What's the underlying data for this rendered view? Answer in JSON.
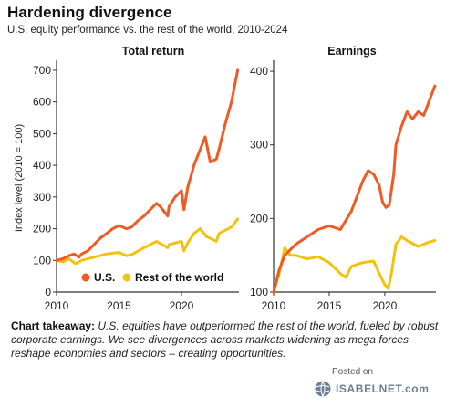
{
  "header": {
    "title": "Hardening divergence",
    "subtitle": "U.S. equity performance vs. the rest of the world, 2010-2024"
  },
  "takeaway": {
    "label": "Chart takeaway:",
    "text": "U.S. equities have outperformed the rest of the world, fueled by robust corporate earnings. We see divergences across markets widening as mega forces reshape economies and sectors – creating opportunities."
  },
  "watermark": {
    "posted": "Posted on",
    "brand": "ISABELNET.com"
  },
  "colors": {
    "us": "#f15a22",
    "row": "#f4c20d",
    "axis": "#333333"
  },
  "chart_data": [
    {
      "type": "line",
      "title": "Total return",
      "ylabel": "Index level (2010 = 100)",
      "xlim": [
        2010,
        2024.6
      ],
      "ylim": [
        0,
        720
      ],
      "yticks": [
        0,
        100,
        200,
        300,
        400,
        500,
        600,
        700
      ],
      "xticks": [
        2010,
        2015,
        2020
      ],
      "legend": "bottom",
      "series": [
        {
          "name": "U.S.",
          "x": [
            2010,
            2010.5,
            2011,
            2011.4,
            2011.8,
            2012,
            2012.5,
            2013,
            2013.5,
            2014,
            2014.5,
            2015,
            2015.6,
            2016,
            2016.5,
            2017,
            2017.5,
            2018,
            2018.3,
            2018.9,
            2019,
            2019.5,
            2020,
            2020.2,
            2020.5,
            2021,
            2021.5,
            2021.9,
            2022.3,
            2022.8,
            2023,
            2023.5,
            2024,
            2024.5
          ],
          "values": [
            100,
            105,
            115,
            120,
            110,
            120,
            130,
            150,
            170,
            185,
            200,
            210,
            200,
            205,
            225,
            240,
            260,
            280,
            270,
            240,
            270,
            300,
            320,
            260,
            330,
            400,
            450,
            490,
            410,
            420,
            450,
            530,
            600,
            700
          ]
        },
        {
          "name": "Rest of the world",
          "x": [
            2010,
            2010.5,
            2011,
            2011.5,
            2011.8,
            2012,
            2013,
            2014,
            2015,
            2015.6,
            2016,
            2017,
            2018,
            2018.9,
            2019,
            2020,
            2020.2,
            2020.5,
            2021,
            2021.5,
            2022,
            2022.8,
            2023,
            2024,
            2024.5
          ],
          "values": [
            100,
            95,
            105,
            90,
            95,
            100,
            110,
            120,
            125,
            115,
            118,
            140,
            160,
            140,
            150,
            160,
            130,
            155,
            185,
            200,
            175,
            160,
            185,
            205,
            230
          ]
        }
      ]
    },
    {
      "type": "line",
      "title": "Earnings",
      "xlim": [
        2010,
        2024.6
      ],
      "ylim": [
        100,
        410
      ],
      "yticks": [
        100,
        200,
        300,
        400
      ],
      "xticks": [
        2010,
        2015,
        2020
      ],
      "series": [
        {
          "name": "U.S.",
          "x": [
            2010,
            2010.5,
            2011,
            2012,
            2013,
            2014,
            2015,
            2016,
            2017,
            2018,
            2018.5,
            2019,
            2019.5,
            2019.8,
            2020.1,
            2020.4,
            2020.8,
            2021,
            2021.5,
            2022,
            2022.5,
            2023,
            2023.5,
            2024,
            2024.5
          ],
          "values": [
            100,
            130,
            150,
            165,
            175,
            185,
            190,
            185,
            210,
            250,
            265,
            260,
            245,
            222,
            215,
            218,
            260,
            300,
            325,
            345,
            335,
            345,
            340,
            360,
            380
          ]
        },
        {
          "name": "Rest of the world",
          "x": [
            2010,
            2010.5,
            2011,
            2011.5,
            2012,
            2013,
            2014,
            2015,
            2016,
            2016.5,
            2017,
            2018,
            2019,
            2019.5,
            2020,
            2020.3,
            2020.6,
            2021,
            2021.5,
            2022,
            2023,
            2024,
            2024.5
          ],
          "values": [
            100,
            125,
            160,
            150,
            150,
            145,
            148,
            140,
            125,
            120,
            135,
            140,
            142,
            125,
            110,
            105,
            125,
            165,
            175,
            170,
            162,
            168,
            170
          ]
        }
      ]
    }
  ]
}
